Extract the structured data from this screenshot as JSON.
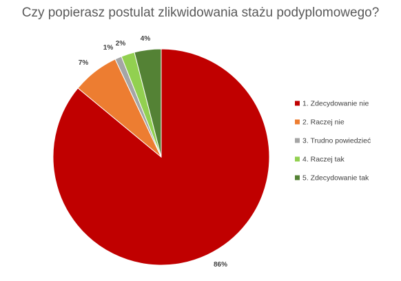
{
  "chart_data": {
    "type": "pie",
    "title": "Czy popierasz postulat zlikwidowania stażu podyplomowego?",
    "categories": [
      "1. Zdecydowanie nie",
      "2. Raczej nie",
      "3. Trudno powiedzieć",
      "4. Raczej tak",
      "5. Zdecydowanie tak"
    ],
    "values": [
      86,
      7,
      1,
      2,
      4
    ],
    "data_labels": [
      "86%",
      "7%",
      "1%",
      "2%",
      "4%"
    ],
    "unit": "%",
    "colors": [
      "#c00000",
      "#ed7d31",
      "#a5a5a5",
      "#92d050",
      "#548235"
    ],
    "legend_position": "right",
    "start_angle": "12 o'clock, clockwise"
  }
}
